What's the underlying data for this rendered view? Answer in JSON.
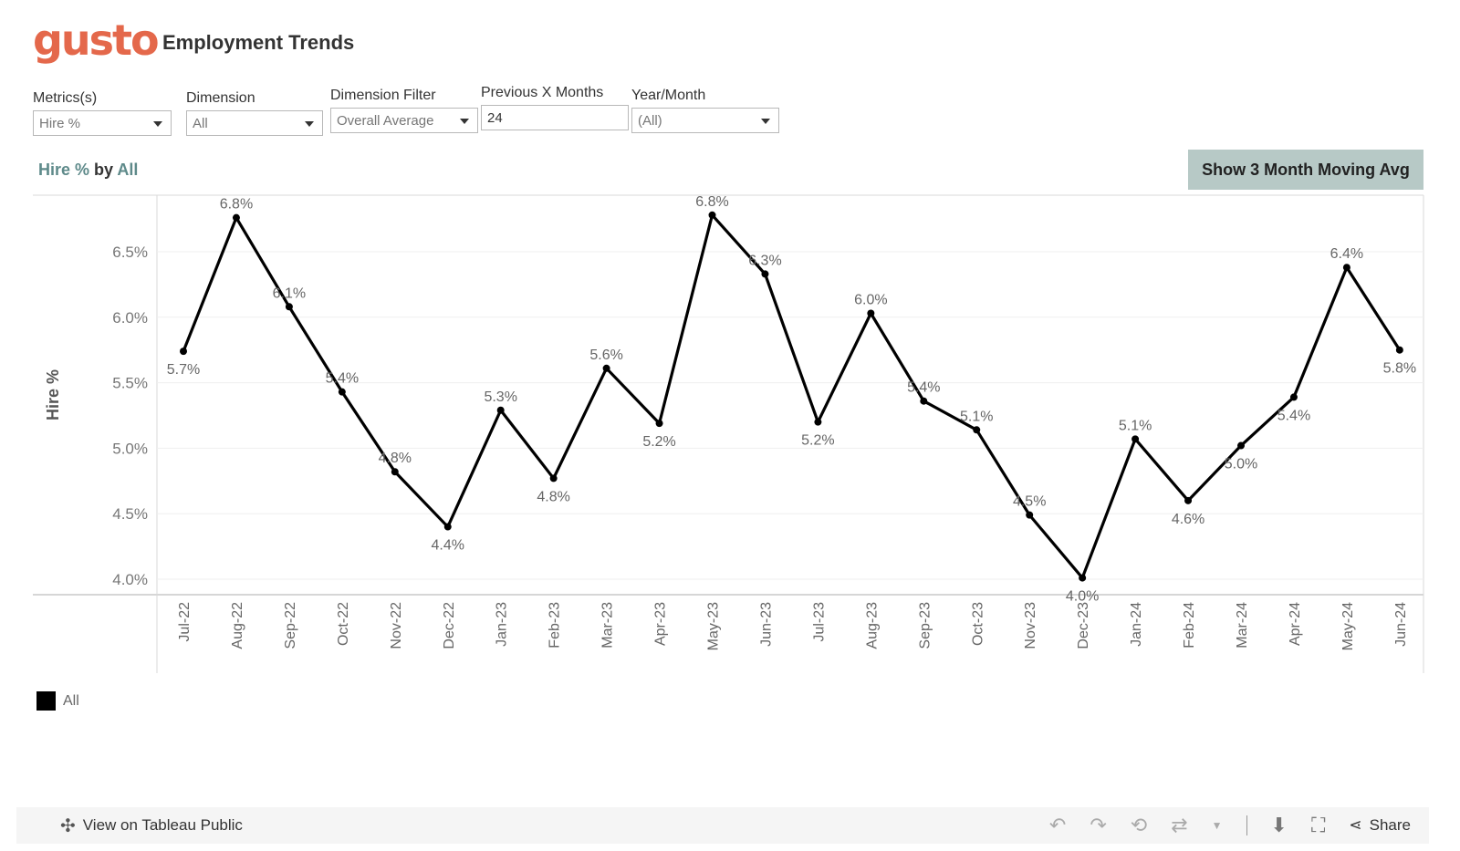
{
  "header": {
    "logo": "gusto",
    "title": "Employment Trends"
  },
  "filters": [
    {
      "label": "Metrics(s)",
      "value": "Hire %",
      "type": "dropdown"
    },
    {
      "label": "Dimension",
      "value": "All",
      "type": "dropdown"
    },
    {
      "label": "Dimension Filter",
      "value": "Overall Average",
      "type": "dropdown"
    },
    {
      "label": "Previous X Months",
      "value": "24",
      "type": "input"
    },
    {
      "label": "Year/Month",
      "value": "(All)",
      "type": "dropdown"
    }
  ],
  "sheet_title": {
    "metric": "Hire %",
    "by": "by",
    "dimension": "All"
  },
  "moving_avg_button": "Show 3 Month Moving Avg",
  "legend": {
    "label": "All",
    "color": "#000000"
  },
  "toolbar": {
    "view_on_tableau": "View on Tableau Public",
    "share": "Share"
  },
  "chart_data": {
    "type": "line",
    "ylabel": "Hire %",
    "ylim": [
      3.95,
      6.8
    ],
    "yticks": [
      "4.0%",
      "4.5%",
      "5.0%",
      "5.5%",
      "6.0%",
      "6.5%"
    ],
    "ytick_values": [
      4.0,
      4.5,
      5.0,
      5.5,
      6.0,
      6.5
    ],
    "categories": [
      "Jul-22",
      "Aug-22",
      "Sep-22",
      "Oct-22",
      "Nov-22",
      "Dec-22",
      "Jan-23",
      "Feb-23",
      "Mar-23",
      "Apr-23",
      "May-23",
      "Jun-23",
      "Jul-23",
      "Aug-23",
      "Sep-23",
      "Oct-23",
      "Nov-23",
      "Dec-23",
      "Jan-24",
      "Feb-24",
      "Mar-24",
      "Apr-24",
      "May-24",
      "Jun-24"
    ],
    "series": [
      {
        "name": "All",
        "color": "#000000",
        "values": [
          5.74,
          6.76,
          6.08,
          5.43,
          4.82,
          4.4,
          5.29,
          4.77,
          5.61,
          5.19,
          6.78,
          6.33,
          5.2,
          6.03,
          5.36,
          5.14,
          4.49,
          4.01,
          5.07,
          4.6,
          5.02,
          5.39,
          6.38,
          5.75
        ],
        "labels": [
          "5.7%",
          "6.8%",
          "6.1%",
          "5.4%",
          "4.8%",
          "4.4%",
          "5.3%",
          "4.8%",
          "5.6%",
          "5.2%",
          "6.8%",
          "6.3%",
          "5.2%",
          "6.0%",
          "5.4%",
          "5.1%",
          "4.5%",
          "4.0%",
          "5.1%",
          "4.6%",
          "5.0%",
          "5.4%",
          "6.4%",
          "5.8%"
        ]
      }
    ],
    "grid": true,
    "legend_position": "bottom-left"
  }
}
